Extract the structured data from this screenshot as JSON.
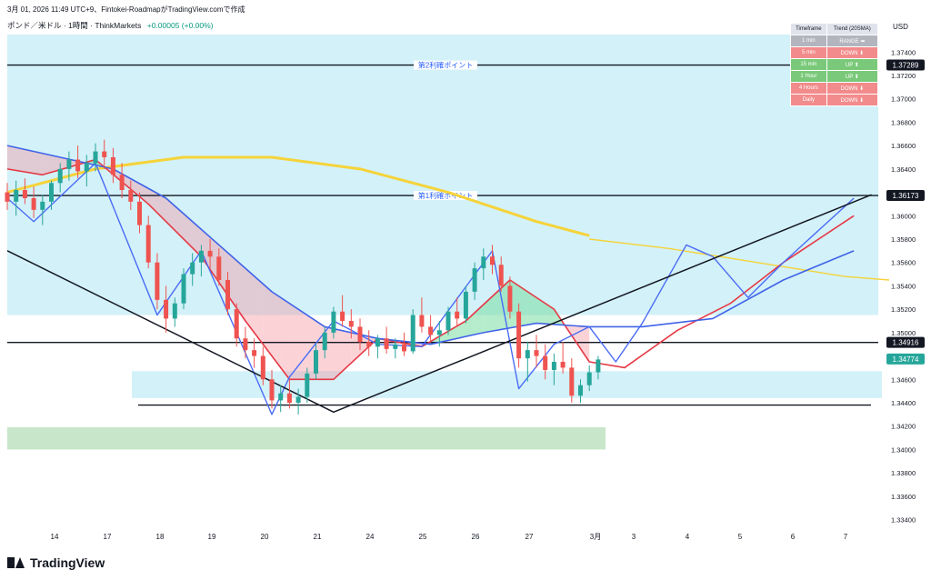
{
  "header": {
    "timestamp_line": "3月 01, 2026 11:49 UTC+9、Fintokei-RoadmapがTradingView.comで作成",
    "symbol": "ポンド／米ドル · 1時間 · ThinkMarkets",
    "change": "+0.00005 (+0.00%)"
  },
  "trend_table": {
    "headers": [
      "Timeframe",
      "Trend (20SMA)"
    ],
    "rows": [
      {
        "tf": "1 min",
        "trend": "RANGE ➡",
        "state": "range"
      },
      {
        "tf": "5 min",
        "trend": "DOWN ⬇",
        "state": "down"
      },
      {
        "tf": "15 min",
        "trend": "UP ⬆",
        "state": "up"
      },
      {
        "tf": "1 Hour",
        "trend": "UP ⬆",
        "state": "up"
      },
      {
        "tf": "4 Hours",
        "trend": "DOWN ⬇",
        "state": "down"
      },
      {
        "tf": "Daily",
        "trend": "DOWN ⬇",
        "state": "down"
      }
    ]
  },
  "chart_data": {
    "type": "candlestick",
    "currency": "USD",
    "ylim": [
      1.3335,
      1.3755
    ],
    "y_ticks": [
      1.374,
      1.372,
      1.37,
      1.368,
      1.366,
      1.364,
      1.362,
      1.36,
      1.358,
      1.356,
      1.354,
      1.352,
      1.35,
      1.348,
      1.346,
      1.344,
      1.342,
      1.34,
      1.338,
      1.336,
      1.334
    ],
    "x_ticks": [
      "14",
      "17",
      "18",
      "19",
      "20",
      "21",
      "24",
      "25",
      "26",
      "27",
      "3月",
      "3",
      "4",
      "5",
      "6",
      "7"
    ],
    "price_badges": [
      {
        "value": "1.37289",
        "style": "black"
      },
      {
        "value": "1.36173",
        "style": "black"
      },
      {
        "value": "1.34916",
        "style": "black"
      },
      {
        "value": "1.34774",
        "style": "green"
      }
    ],
    "horizontal_lines": [
      {
        "label": "第2利確ポイント",
        "price": 1.37289
      },
      {
        "label": "第1利確ポイント",
        "price": 1.36173
      },
      {
        "label": "",
        "price": 1.34916
      },
      {
        "label": "",
        "price": 1.3438
      }
    ],
    "zones": [
      {
        "from": 1.3515,
        "to": 1.5533,
        "color": "#d3f1f8"
      },
      {
        "from": 1.3444,
        "to": 1.3467,
        "color": "#d3f1f8"
      },
      {
        "from": 1.34,
        "to": 1.3419,
        "color": "#c8e6c9"
      }
    ],
    "candles": [
      [
        1.362,
        1.3628,
        1.3605,
        1.3612
      ],
      [
        1.3612,
        1.363,
        1.36,
        1.3622
      ],
      [
        1.3622,
        1.3632,
        1.361,
        1.3615
      ],
      [
        1.3615,
        1.3625,
        1.3598,
        1.3605
      ],
      [
        1.3605,
        1.3618,
        1.3592,
        1.3612
      ],
      [
        1.3612,
        1.363,
        1.3605,
        1.3628
      ],
      [
        1.3628,
        1.3645,
        1.362,
        1.364
      ],
      [
        1.364,
        1.3655,
        1.363,
        1.3648
      ],
      [
        1.3648,
        1.366,
        1.3632,
        1.3638
      ],
      [
        1.3638,
        1.3652,
        1.3625,
        1.3645
      ],
      [
        1.3645,
        1.3662,
        1.3638,
        1.3655
      ],
      [
        1.3655,
        1.3665,
        1.364,
        1.365
      ],
      [
        1.365,
        1.3658,
        1.3628,
        1.3635
      ],
      [
        1.3635,
        1.3645,
        1.3615,
        1.3622
      ],
      [
        1.3622,
        1.363,
        1.3605,
        1.3612
      ],
      [
        1.3612,
        1.362,
        1.3585,
        1.3592
      ],
      [
        1.3592,
        1.36,
        1.3555,
        1.356
      ],
      [
        1.356,
        1.3568,
        1.352,
        1.3528
      ],
      [
        1.3528,
        1.354,
        1.35,
        1.3512
      ],
      [
        1.3512,
        1.353,
        1.3505,
        1.3525
      ],
      [
        1.3525,
        1.3555,
        1.352,
        1.355
      ],
      [
        1.355,
        1.3568,
        1.354,
        1.356
      ],
      [
        1.356,
        1.3575,
        1.3548,
        1.357
      ],
      [
        1.357,
        1.358,
        1.3555,
        1.3565
      ],
      [
        1.3565,
        1.3572,
        1.354,
        1.3545
      ],
      [
        1.3545,
        1.3552,
        1.3515,
        1.352
      ],
      [
        1.352,
        1.3525,
        1.3488,
        1.3495
      ],
      [
        1.3495,
        1.3505,
        1.3478,
        1.3485
      ],
      [
        1.3485,
        1.3495,
        1.347,
        1.348
      ],
      [
        1.348,
        1.3488,
        1.3455,
        1.346
      ],
      [
        1.346,
        1.3468,
        1.3435,
        1.3442
      ],
      [
        1.3442,
        1.3455,
        1.3432,
        1.3448
      ],
      [
        1.3448,
        1.346,
        1.3435,
        1.344
      ],
      [
        1.344,
        1.3452,
        1.343,
        1.3445
      ],
      [
        1.3445,
        1.347,
        1.344,
        1.3465
      ],
      [
        1.3465,
        1.349,
        1.346,
        1.3485
      ],
      [
        1.3485,
        1.3505,
        1.3478,
        1.35
      ],
      [
        1.35,
        1.3522,
        1.3495,
        1.3518
      ],
      [
        1.3518,
        1.3532,
        1.3505,
        1.351
      ],
      [
        1.351,
        1.352,
        1.3495,
        1.3505
      ],
      [
        1.3505,
        1.3512,
        1.3485,
        1.3492
      ],
      [
        1.3492,
        1.3502,
        1.348,
        1.3488
      ],
      [
        1.3488,
        1.3498,
        1.3478,
        1.3495
      ],
      [
        1.3495,
        1.3505,
        1.3482,
        1.3486
      ],
      [
        1.3486,
        1.3495,
        1.3478,
        1.349
      ],
      [
        1.349,
        1.35,
        1.348,
        1.3484
      ],
      [
        1.3484,
        1.352,
        1.3482,
        1.3515
      ],
      [
        1.3515,
        1.353,
        1.35,
        1.3505
      ],
      [
        1.3505,
        1.3515,
        1.3492,
        1.3498
      ],
      [
        1.3498,
        1.351,
        1.3488,
        1.3502
      ],
      [
        1.3502,
        1.3522,
        1.3498,
        1.3518
      ],
      [
        1.3518,
        1.353,
        1.3505,
        1.3512
      ],
      [
        1.3512,
        1.354,
        1.3508,
        1.3535
      ],
      [
        1.3535,
        1.356,
        1.3528,
        1.3555
      ],
      [
        1.3555,
        1.3572,
        1.3545,
        1.3565
      ],
      [
        1.3565,
        1.3575,
        1.355,
        1.3558
      ],
      [
        1.3558,
        1.3565,
        1.3535,
        1.354
      ],
      [
        1.354,
        1.3548,
        1.3512,
        1.3518
      ],
      [
        1.3518,
        1.3525,
        1.347,
        1.3478
      ],
      [
        1.3478,
        1.3492,
        1.3458,
        1.3485
      ],
      [
        1.3485,
        1.3498,
        1.347,
        1.348
      ],
      [
        1.348,
        1.349,
        1.346,
        1.3468
      ],
      [
        1.3468,
        1.3482,
        1.3455,
        1.3475
      ],
      [
        1.3475,
        1.3492,
        1.3465,
        1.347
      ],
      [
        1.347,
        1.3478,
        1.344,
        1.3446
      ],
      [
        1.3446,
        1.346,
        1.344,
        1.3455
      ],
      [
        1.3455,
        1.3472,
        1.345,
        1.3466
      ],
      [
        1.3466,
        1.348,
        1.346,
        1.3477
      ]
    ],
    "series": [
      {
        "name": "",
        "color": "#f5d33a",
        "style": "solid",
        "x": [
          0,
          10,
          20,
          30,
          40,
          50,
          60,
          66
        ],
        "y": [
          1.362,
          1.364,
          1.365,
          1.365,
          1.364,
          1.362,
          1.3595,
          1.3583
        ]
      },
      {
        "name": "",
        "color": "#f5d33a",
        "style": "thin",
        "x": [
          66,
          75,
          85,
          95,
          100
        ],
        "y": [
          1.358,
          1.3572,
          1.356,
          1.3548,
          1.3545
        ]
      },
      {
        "name": "",
        "color": "#e53945",
        "style": "solid",
        "x": [
          0,
          4,
          10,
          16,
          22,
          27,
          32,
          37,
          42,
          47,
          52,
          57,
          62,
          66,
          70,
          76,
          82,
          88,
          96
        ],
        "y": [
          1.364,
          1.3635,
          1.3648,
          1.361,
          1.3565,
          1.351,
          1.346,
          1.346,
          1.3495,
          1.3488,
          1.351,
          1.3545,
          1.352,
          1.3475,
          1.347,
          1.3502,
          1.3525,
          1.356,
          1.36
        ]
      },
      {
        "name": "",
        "color": "#3f63e8",
        "style": "solid",
        "x": [
          0,
          6,
          12,
          18,
          24,
          30,
          36,
          42,
          48,
          54,
          60,
          66,
          72,
          80,
          88,
          96
        ],
        "y": [
          1.366,
          1.365,
          1.364,
          1.3615,
          1.3575,
          1.3535,
          1.3505,
          1.3495,
          1.349,
          1.35,
          1.3508,
          1.3505,
          1.3505,
          1.3512,
          1.3545,
          1.357
        ]
      },
      {
        "name": "",
        "color": "#4a6cf7",
        "style": "thin",
        "x": [
          0,
          3,
          10,
          17,
          22,
          30,
          32,
          37,
          42,
          47,
          55,
          58,
          62,
          66,
          69,
          72,
          77,
          80,
          84,
          88,
          96
        ],
        "y": [
          1.3615,
          1.3595,
          1.3645,
          1.3515,
          1.357,
          1.343,
          1.3462,
          1.351,
          1.349,
          1.3488,
          1.357,
          1.3452,
          1.349,
          1.3505,
          1.3475,
          1.3508,
          1.3575,
          1.3565,
          1.353,
          1.356,
          1.3615
        ]
      },
      {
        "name": "",
        "color": "#131722",
        "style": "trend",
        "x": [
          0,
          37,
          98
        ],
        "y": [
          1.357,
          1.3432,
          1.3618
        ]
      }
    ]
  }
}
